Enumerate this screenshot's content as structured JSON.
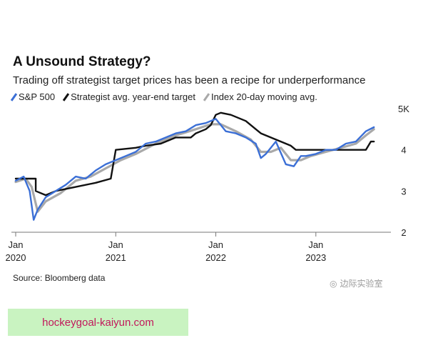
{
  "header": {
    "title": "A Unsound Strategy?",
    "subtitle": "Trading off strategist target prices has been a recipe for underperformance"
  },
  "legend": [
    {
      "label": "S&P 500",
      "color": "#3b6fd6"
    },
    {
      "label": "Strategist avg. year-end target",
      "color": "#111111"
    },
    {
      "label": "Index 20-day moving avg.",
      "color": "#a9a9a9"
    }
  ],
  "footer": {
    "source": "Source: Bloomberg data",
    "watermark": "边际实验室",
    "banner": "hockeygoal-kaiyun.com"
  },
  "chart_data": {
    "type": "line",
    "xlim": [
      2020.0,
      2023.75
    ],
    "ylim": [
      2,
      5
    ],
    "y_ticks": [
      {
        "value": 5,
        "label": "5K"
      },
      {
        "value": 4,
        "label": "4"
      },
      {
        "value": 3,
        "label": "3"
      },
      {
        "value": 2,
        "label": "2"
      }
    ],
    "x_ticks": [
      {
        "value": 2020.0,
        "month": "Jan",
        "year": "2020"
      },
      {
        "value": 2021.0,
        "month": "Jan",
        "year": "2021"
      },
      {
        "value": 2022.0,
        "month": "Jan",
        "year": "2022"
      },
      {
        "value": 2023.0,
        "month": "Jan",
        "year": "2023"
      }
    ],
    "series": [
      {
        "name": "S&P 500",
        "color": "#3b6fd6",
        "x": [
          2020.0,
          2020.08,
          2020.14,
          2020.18,
          2020.22,
          2020.3,
          2020.4,
          2020.5,
          2020.6,
          2020.7,
          2020.8,
          2020.9,
          2021.0,
          2021.1,
          2021.2,
          2021.3,
          2021.4,
          2021.5,
          2021.6,
          2021.7,
          2021.8,
          2021.9,
          2022.0,
          2022.1,
          2022.2,
          2022.3,
          2022.4,
          2022.45,
          2022.5,
          2022.6,
          2022.7,
          2022.78,
          2022.85,
          2022.9,
          2023.0,
          2023.1,
          2023.2,
          2023.3,
          2023.4,
          2023.5,
          2023.58
        ],
        "values": [
          3.25,
          3.35,
          3.0,
          2.3,
          2.55,
          2.85,
          3.0,
          3.15,
          3.35,
          3.3,
          3.5,
          3.65,
          3.75,
          3.85,
          3.95,
          4.15,
          4.2,
          4.3,
          4.4,
          4.45,
          4.6,
          4.65,
          4.75,
          4.45,
          4.4,
          4.3,
          4.15,
          3.8,
          3.9,
          4.2,
          3.65,
          3.6,
          3.85,
          3.85,
          3.9,
          4.0,
          4.0,
          4.15,
          4.2,
          4.45,
          4.55
        ]
      },
      {
        "name": "Strategist avg. year-end target",
        "color": "#111111",
        "x": [
          2020.0,
          2020.2,
          2020.2,
          2020.3,
          2020.4,
          2020.6,
          2020.8,
          2020.95,
          2021.0,
          2021.2,
          2021.3,
          2021.45,
          2021.5,
          2021.55,
          2021.6,
          2021.75,
          2021.8,
          2021.9,
          2021.95,
          2022.0,
          2022.05,
          2022.15,
          2022.3,
          2022.4,
          2022.45,
          2022.55,
          2022.65,
          2022.75,
          2022.8,
          2022.95,
          2023.0,
          2023.2,
          2023.3,
          2023.5,
          2023.55,
          2023.58
        ],
        "values": [
          3.3,
          3.3,
          3.0,
          2.9,
          3.0,
          3.1,
          3.2,
          3.3,
          4.0,
          4.05,
          4.1,
          4.15,
          4.2,
          4.25,
          4.3,
          4.3,
          4.4,
          4.5,
          4.6,
          4.85,
          4.9,
          4.85,
          4.7,
          4.5,
          4.4,
          4.3,
          4.2,
          4.1,
          4.0,
          4.0,
          4.0,
          4.0,
          4.0,
          4.0,
          4.2,
          4.2
        ]
      },
      {
        "name": "Index 20-day moving avg.",
        "color": "#a9a9a9",
        "x": [
          2020.0,
          2020.1,
          2020.16,
          2020.22,
          2020.3,
          2020.45,
          2020.6,
          2020.75,
          2020.9,
          2021.05,
          2021.2,
          2021.4,
          2021.6,
          2021.8,
          2021.95,
          2022.05,
          2022.2,
          2022.35,
          2022.45,
          2022.55,
          2022.65,
          2022.75,
          2022.85,
          2022.95,
          2023.1,
          2023.25,
          2023.4,
          2023.5,
          2023.58
        ],
        "values": [
          3.22,
          3.3,
          3.1,
          2.5,
          2.75,
          2.95,
          3.25,
          3.35,
          3.55,
          3.75,
          3.9,
          4.15,
          4.35,
          4.5,
          4.62,
          4.62,
          4.45,
          4.25,
          3.95,
          3.95,
          4.05,
          3.75,
          3.75,
          3.85,
          3.95,
          4.05,
          4.15,
          4.35,
          4.5
        ]
      }
    ]
  }
}
